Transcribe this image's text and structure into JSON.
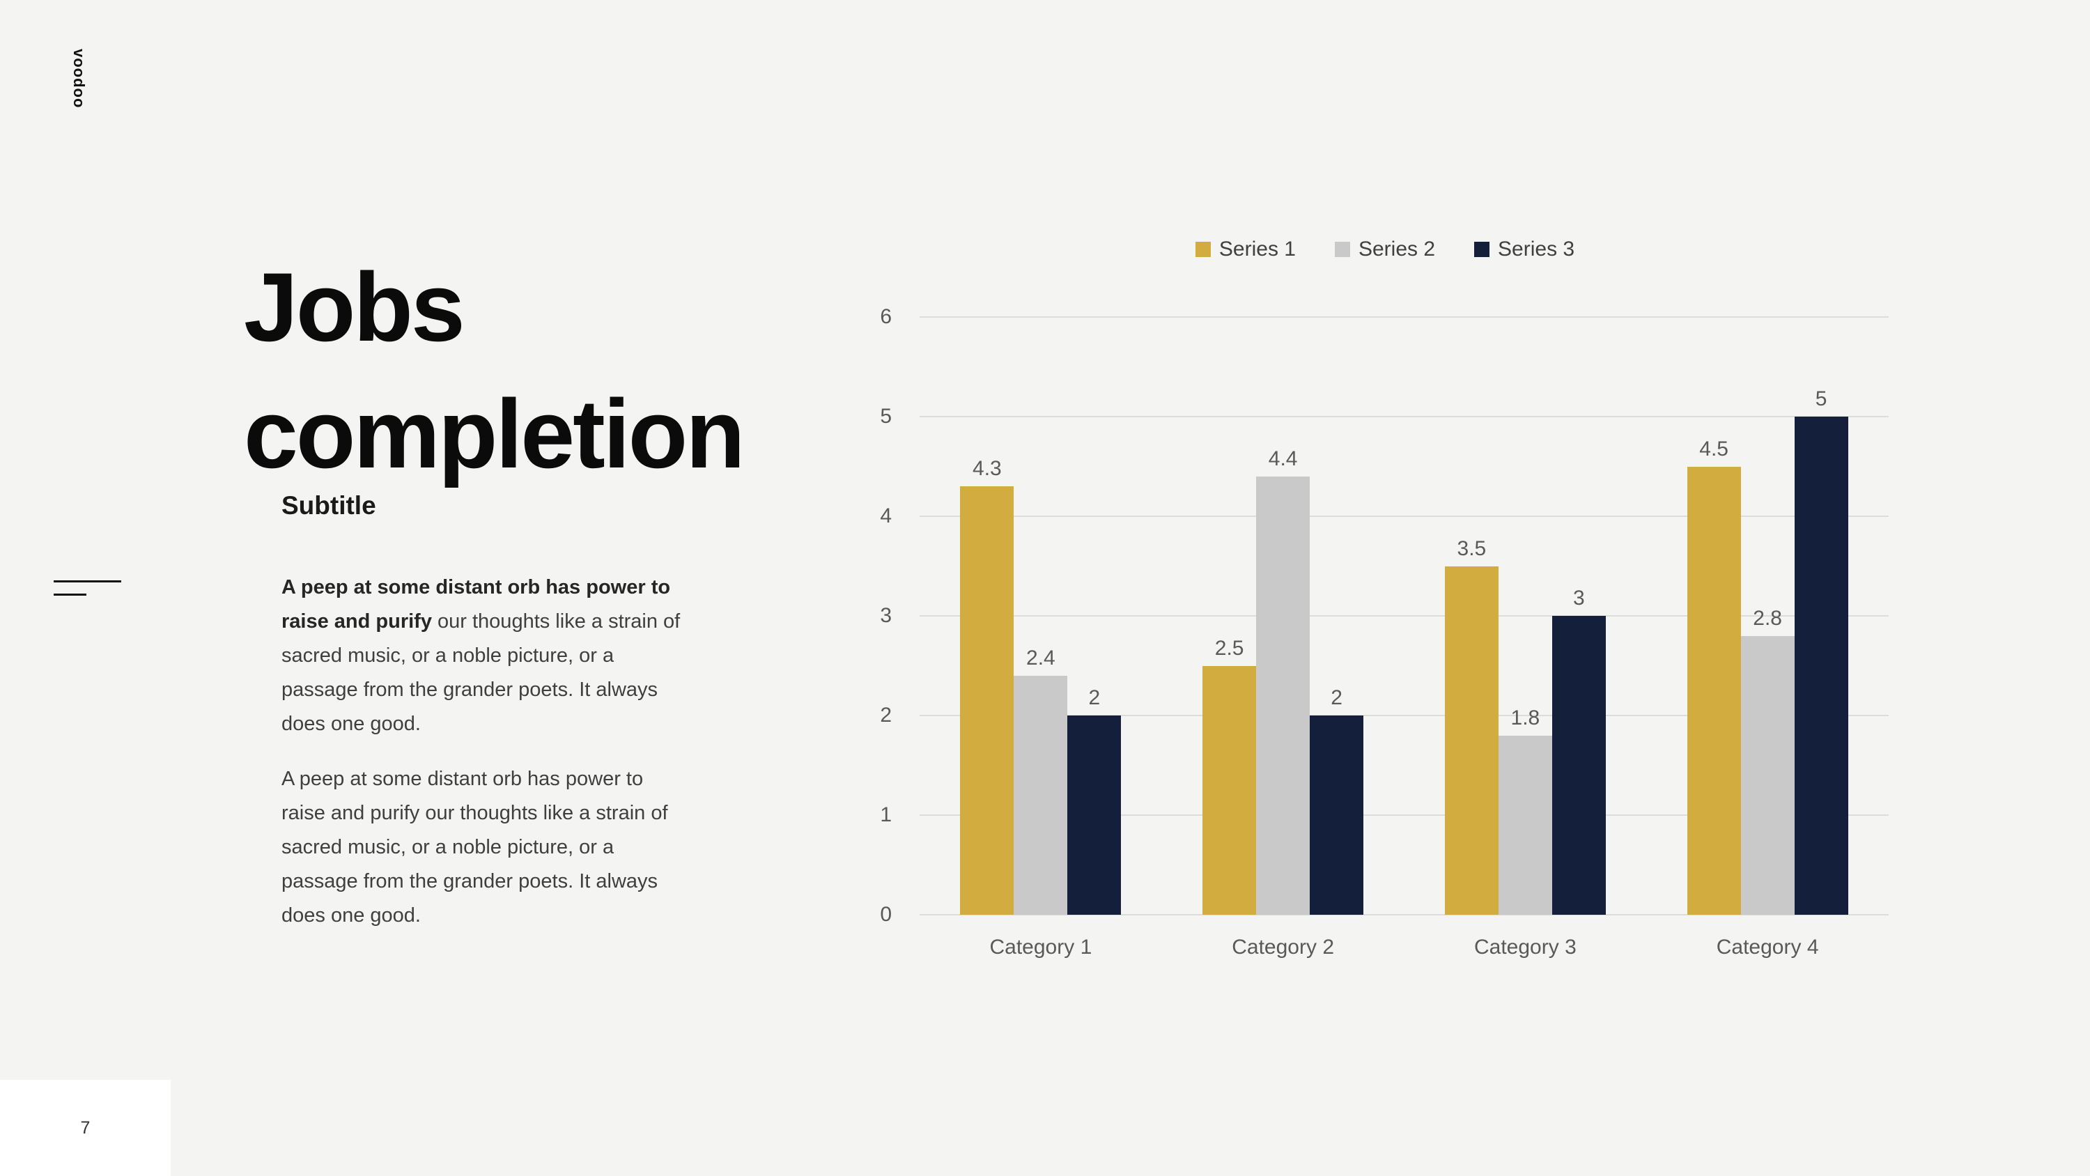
{
  "slide": {
    "brand": "voodoo",
    "title": "Jobs completion",
    "subtitle": "Subtitle",
    "para1_bold": "A peep at some distant orb has power to raise and purify",
    "para1_rest": " our thoughts like a strain of sacred music, or a noble picture, or a passage from the grander poets. It always does one good.",
    "para2": "A peep at some distant orb has power to raise and purify our thoughts like a strain of sacred music, or a noble picture, or a passage from the grander poets. It always does one good.",
    "page_number": "7"
  },
  "colors": {
    "background": "#F4F4F2",
    "series1": "#D2AC3F",
    "series2": "#C9C9C9",
    "series3": "#141F3C",
    "gridline": "#DCDCDA",
    "chart_text": "#595959"
  },
  "chart_data": {
    "type": "bar",
    "title": "",
    "categories": [
      "Category 1",
      "Category 2",
      "Category 3",
      "Category 4"
    ],
    "series": [
      {
        "name": "Series 1",
        "color": "#D2AC3F",
        "values": [
          4.3,
          2.5,
          3.5,
          4.5
        ]
      },
      {
        "name": "Series 2",
        "color": "#C9C9C9",
        "values": [
          2.4,
          4.4,
          1.8,
          2.8
        ]
      },
      {
        "name": "Series 3",
        "color": "#141F3C",
        "values": [
          2,
          2,
          3,
          5
        ]
      }
    ],
    "ylim": [
      0,
      6
    ],
    "yticks": [
      0,
      1,
      2,
      3,
      4,
      5,
      6
    ],
    "grid": true,
    "legend_position": "top",
    "data_labels": true,
    "xlabel": "",
    "ylabel": ""
  }
}
